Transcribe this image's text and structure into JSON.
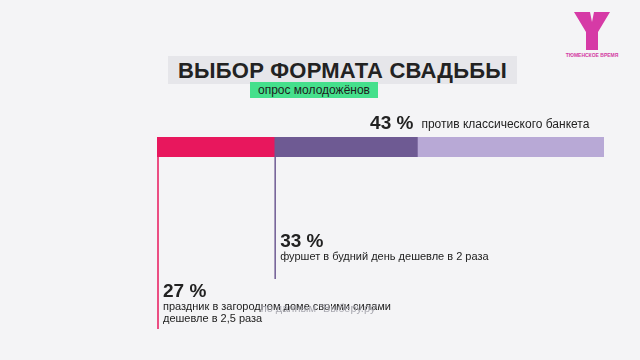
{
  "chart_data": {
    "type": "bar",
    "title": "ВЫБОР ФОРМАТА СВАДЬБЫ",
    "subtitle": "опрос молодожёнов",
    "source": "по данным \"Выберу.ру\"",
    "brand": "ТЮМЕНСКОЕ ВРЕМЯ",
    "orientation": "horizontal",
    "stacked": true,
    "data_labels": true,
    "tick_labels": false,
    "grid": false,
    "categories": [
      null
    ],
    "xlim": [
      0,
      103
    ],
    "series": [
      {
        "name": "праздник в загородном доме своими силами дешевле в 2,5 раза",
        "color": "#e8175d",
        "values": [
          27
        ],
        "value_labels": [
          "27 %"
        ]
      },
      {
        "name": "фуршет в будний день дешевле в 2 раза",
        "color": "#6e5a93",
        "values": [
          33
        ],
        "value_labels": [
          "33 %"
        ]
      },
      {
        "name": "против классического банкета",
        "color": "#b8a9d6",
        "values": [
          43
        ],
        "value_labels": [
          "43 %"
        ]
      }
    ]
  }
}
